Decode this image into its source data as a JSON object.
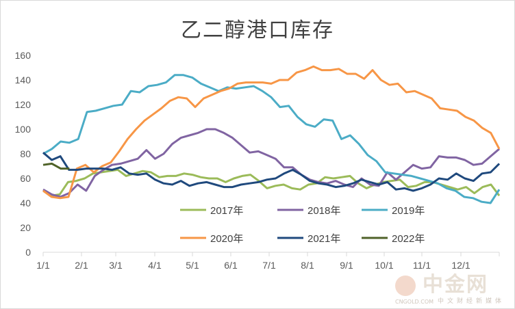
{
  "title": "乙二醇港口库存",
  "chart_data": {
    "type": "line",
    "title": "乙二醇港口库存",
    "xlabel": "",
    "ylabel": "",
    "ylim": [
      0,
      160
    ],
    "yticks": [
      0,
      20,
      40,
      60,
      80,
      100,
      120,
      140,
      160
    ],
    "xticks": [
      "1/1",
      "2/1",
      "3/1",
      "4/1",
      "5/1",
      "6/1",
      "7/1",
      "8/1",
      "9/1",
      "10/1",
      "11/1",
      "12/1"
    ],
    "grid": false,
    "legend": "bottom-inside",
    "series": [
      {
        "name": "2017年",
        "color": "#9bbb59",
        "values": [
          50,
          46,
          47,
          57,
          58,
          60,
          64,
          65,
          66,
          67,
          62,
          64,
          66,
          65,
          61,
          62,
          62,
          64,
          63,
          61,
          60,
          60,
          57,
          60,
          62,
          63,
          58,
          52,
          54,
          55,
          52,
          51,
          55,
          56,
          61,
          60,
          61,
          62,
          56,
          52,
          55,
          57,
          58,
          59,
          53,
          54,
          57,
          57,
          55,
          53,
          51,
          53,
          48,
          53,
          55,
          46
        ]
      },
      {
        "name": "2018年",
        "color": "#8064a2",
        "values": [
          51,
          47,
          45,
          48,
          55,
          50,
          62,
          67,
          71,
          72,
          74,
          76,
          83,
          76,
          80,
          88,
          93,
          95,
          97,
          100,
          100,
          97,
          93,
          87,
          81,
          82,
          79,
          76,
          69,
          69,
          63,
          59,
          57,
          56,
          58,
          55,
          53,
          60,
          55,
          54,
          65,
          59,
          65,
          71,
          68,
          69,
          78,
          77,
          77,
          75,
          71,
          72,
          78,
          84
        ]
      },
      {
        "name": "2019年",
        "color": "#4bacc6",
        "values": [
          80,
          84,
          90,
          89,
          92,
          114,
          115,
          117,
          119,
          120,
          131,
          130,
          135,
          136,
          138,
          144,
          144,
          142,
          137,
          134,
          131,
          134,
          133,
          134,
          135,
          131,
          126,
          118,
          119,
          110,
          104,
          102,
          108,
          107,
          92,
          95,
          88,
          79,
          74,
          65,
          64,
          63,
          62,
          60,
          58,
          56,
          52,
          50,
          45,
          44,
          41,
          40,
          51
        ]
      },
      {
        "name": "2020年",
        "color": "#f79646",
        "values": [
          50,
          45,
          44,
          45,
          68,
          71,
          65,
          70,
          73,
          82,
          92,
          100,
          107,
          112,
          117,
          123,
          126,
          125,
          118,
          125,
          128,
          131,
          133,
          137,
          138,
          138,
          138,
          137,
          140,
          140,
          146,
          148,
          151,
          148,
          148,
          149,
          145,
          145,
          141,
          148,
          140,
          136,
          137,
          130,
          131,
          128,
          125,
          117,
          116,
          115,
          110,
          107,
          101,
          97,
          84
        ]
      },
      {
        "name": "2021年",
        "color": "#1f497d",
        "values": [
          81,
          75,
          78,
          67,
          67,
          68,
          68,
          68,
          67,
          69,
          64,
          63,
          64,
          59,
          56,
          55,
          58,
          54,
          56,
          57,
          55,
          53,
          53,
          55,
          56,
          57,
          59,
          60,
          64,
          67,
          63,
          58,
          56,
          55,
          53,
          54,
          56,
          59,
          57,
          55,
          57,
          51,
          52,
          50,
          52,
          55,
          60,
          59,
          64,
          60,
          58,
          64,
          65,
          72
        ]
      },
      {
        "name": "2022年",
        "color": "#4f6228",
        "values": [
          71,
          72,
          68,
          68
        ],
        "weeks_span": 4
      }
    ]
  },
  "watermark": {
    "brand": "中金网",
    "url": "CNGOLD.COM",
    "tagline": "中文财经新媒体"
  }
}
